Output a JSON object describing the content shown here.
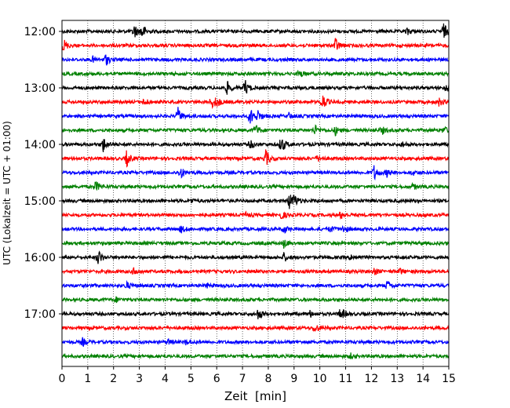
{
  "chart_data": {
    "type": "line",
    "title": "",
    "xlabel": "Zeit  [min]",
    "ylabel": "UTC (Lokalzeit = UTC + 01:00)",
    "xlim": [
      0,
      15
    ],
    "x_ticks": [
      0,
      1,
      2,
      3,
      4,
      5,
      6,
      7,
      8,
      9,
      10,
      11,
      12,
      13,
      14,
      15
    ],
    "grid_x": "dotted",
    "y_tick_labels": [
      "12:00",
      "13:00",
      "14:00",
      "15:00",
      "16:00",
      "17:00"
    ],
    "trace_colors": [
      "#000000",
      "#ff0000",
      "#0000ff",
      "#008000"
    ],
    "traces": [
      {
        "start": "12:00",
        "events": [
          [
            2.8,
            1.0
          ],
          [
            3.1,
            1.1
          ],
          [
            13.4,
            0.5
          ],
          [
            14.8,
            1.1
          ]
        ]
      },
      {
        "start": "12:15",
        "events": [
          [
            0.05,
            1.0
          ],
          [
            10.6,
            1.1
          ]
        ]
      },
      {
        "start": "12:30",
        "events": [
          [
            1.7,
            0.8
          ],
          [
            1.2,
            0.4
          ]
        ]
      },
      {
        "start": "12:45",
        "events": [
          [
            9.2,
            0.6
          ]
        ]
      },
      {
        "start": "13:00",
        "events": [
          [
            6.4,
            0.9
          ],
          [
            7.1,
            1.1
          ],
          [
            14.9,
            0.5
          ]
        ]
      },
      {
        "start": "13:15",
        "events": [
          [
            3.2,
            0.5
          ],
          [
            5.8,
            0.8
          ],
          [
            6.0,
            0.6
          ],
          [
            10.1,
            1.2
          ],
          [
            14.6,
            0.6
          ]
        ]
      },
      {
        "start": "13:30",
        "events": [
          [
            4.5,
            1.1
          ],
          [
            7.3,
            1.2
          ],
          [
            7.6,
            0.7
          ],
          [
            8.8,
            0.4
          ]
        ]
      },
      {
        "start": "13:45",
        "events": [
          [
            7.5,
            0.9
          ],
          [
            9.8,
            0.7
          ],
          [
            10.6,
            0.6
          ],
          [
            12.4,
            0.5
          ],
          [
            14.8,
            0.5
          ]
        ]
      },
      {
        "start": "14:00",
        "events": [
          [
            1.6,
            1.1
          ],
          [
            7.3,
            0.6
          ],
          [
            8.5,
            1.3
          ],
          [
            13.2,
            0.4
          ]
        ]
      },
      {
        "start": "14:15",
        "events": [
          [
            2.5,
            1.1
          ],
          [
            7.9,
            1.2
          ],
          [
            9.9,
            0.4
          ]
        ]
      },
      {
        "start": "14:30",
        "events": [
          [
            4.6,
            0.8
          ],
          [
            12.1,
            1.0
          ],
          [
            12.6,
            0.5
          ],
          [
            13.6,
            0.3
          ]
        ]
      },
      {
        "start": "14:45",
        "events": [
          [
            1.3,
            0.8
          ],
          [
            13.6,
            0.4
          ]
        ]
      },
      {
        "start": "15:00",
        "events": [
          [
            8.8,
            1.2
          ],
          [
            9.0,
            0.8
          ],
          [
            5.0,
            0.3
          ]
        ]
      },
      {
        "start": "15:15",
        "events": [
          [
            8.5,
            0.6
          ],
          [
            10.8,
            0.5
          ],
          [
            7.1,
            0.3
          ]
        ]
      },
      {
        "start": "15:30",
        "events": [
          [
            4.6,
            0.5
          ],
          [
            8.6,
            0.6
          ],
          [
            10.4,
            0.4
          ],
          [
            10.9,
            0.5
          ]
        ]
      },
      {
        "start": "15:45",
        "events": [
          [
            8.6,
            0.6
          ]
        ]
      },
      {
        "start": "16:00",
        "events": [
          [
            1.4,
            1.1
          ],
          [
            8.6,
            0.6
          ],
          [
            11.2,
            0.4
          ]
        ]
      },
      {
        "start": "16:15",
        "events": [
          [
            2.8,
            0.7
          ],
          [
            12.1,
            0.5
          ],
          [
            13.1,
            0.4
          ]
        ]
      },
      {
        "start": "16:30",
        "events": [
          [
            2.5,
            0.5
          ],
          [
            12.6,
            0.7
          ],
          [
            5.6,
            0.3
          ]
        ]
      },
      {
        "start": "16:45",
        "events": [
          [
            2.1,
            0.3
          ]
        ]
      },
      {
        "start": "17:00",
        "events": [
          [
            7.6,
            0.9
          ],
          [
            10.8,
            1.0
          ],
          [
            9.6,
            0.5
          ]
        ]
      },
      {
        "start": "17:15",
        "events": [
          [
            9.8,
            0.7
          ]
        ]
      },
      {
        "start": "17:30",
        "events": [
          [
            0.8,
            0.5
          ],
          [
            4.1,
            0.4
          ],
          [
            4.8,
            0.3
          ]
        ]
      },
      {
        "start": "17:45",
        "events": [
          [
            11.2,
            0.3
          ]
        ]
      }
    ]
  }
}
